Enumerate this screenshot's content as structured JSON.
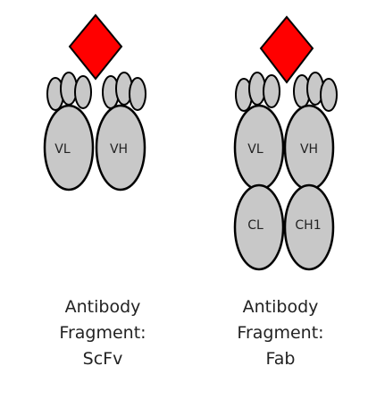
{
  "colors": {
    "antigen": "#ff0000",
    "domain_fill": "#c8c8c8",
    "outline": "#000000",
    "text": "#222222"
  },
  "scfv": {
    "vl_label": "VL",
    "vh_label": "VH",
    "caption_line1": "Antibody",
    "caption_line2": "Fragment:",
    "caption_line3": "ScFv"
  },
  "fab": {
    "vl_label": "VL",
    "vh_label": "VH",
    "cl_label": "CL",
    "ch1_label": "CH1",
    "caption_line1": "Antibody",
    "caption_line2": "Fragment:",
    "caption_line3": "Fab"
  }
}
